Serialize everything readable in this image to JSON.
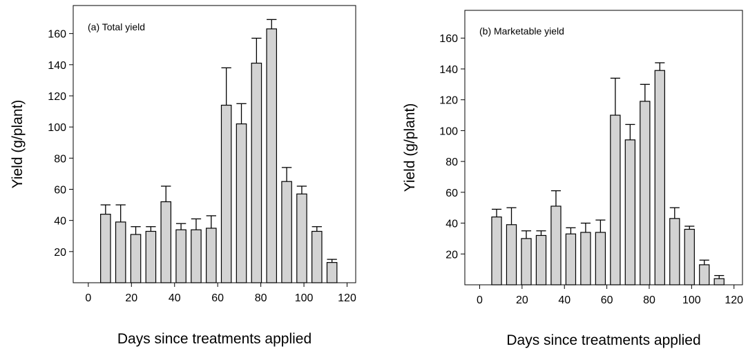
{
  "chart_data": [
    {
      "type": "bar",
      "title": "(a) Total yield",
      "xlabel": "Days since treatments applied",
      "ylabel": "Yield (g/plant)",
      "x_ticks": [
        0,
        20,
        40,
        60,
        80,
        100,
        120
      ],
      "y_ticks": [
        20,
        40,
        60,
        80,
        100,
        120,
        140,
        160
      ],
      "xlim": [
        -7,
        124
      ],
      "ylim": [
        0,
        178
      ],
      "series": [
        {
          "x": [
            8,
            15,
            22,
            29,
            36,
            43,
            50,
            57,
            64,
            71,
            78,
            85,
            92,
            99,
            106,
            113
          ],
          "values": [
            44,
            39,
            31,
            33,
            52,
            34,
            34,
            35,
            114,
            102,
            141,
            163,
            65,
            57,
            33,
            13
          ],
          "error": [
            6,
            11,
            5,
            3,
            10,
            4,
            7,
            8,
            24,
            13,
            16,
            6,
            9,
            5,
            3,
            2
          ]
        }
      ]
    },
    {
      "type": "bar",
      "title": "(b) Marketable yield",
      "xlabel": "Days since treatments applied",
      "ylabel": "Yield (g/plant)",
      "x_ticks": [
        0,
        20,
        40,
        60,
        80,
        100,
        120
      ],
      "y_ticks": [
        20,
        40,
        60,
        80,
        100,
        120,
        140,
        160
      ],
      "xlim": [
        -7,
        124
      ],
      "ylim": [
        0,
        178
      ],
      "series": [
        {
          "x": [
            8,
            15,
            22,
            29,
            36,
            43,
            50,
            57,
            64,
            71,
            78,
            85,
            92,
            99,
            106,
            113
          ],
          "values": [
            44,
            39,
            30,
            32,
            51,
            33,
            34,
            34,
            110,
            94,
            119,
            139,
            43,
            36,
            13,
            4
          ],
          "error": [
            5,
            11,
            5,
            3,
            10,
            4,
            6,
            8,
            24,
            10,
            11,
            5,
            7,
            2,
            3,
            2
          ]
        }
      ]
    }
  ]
}
